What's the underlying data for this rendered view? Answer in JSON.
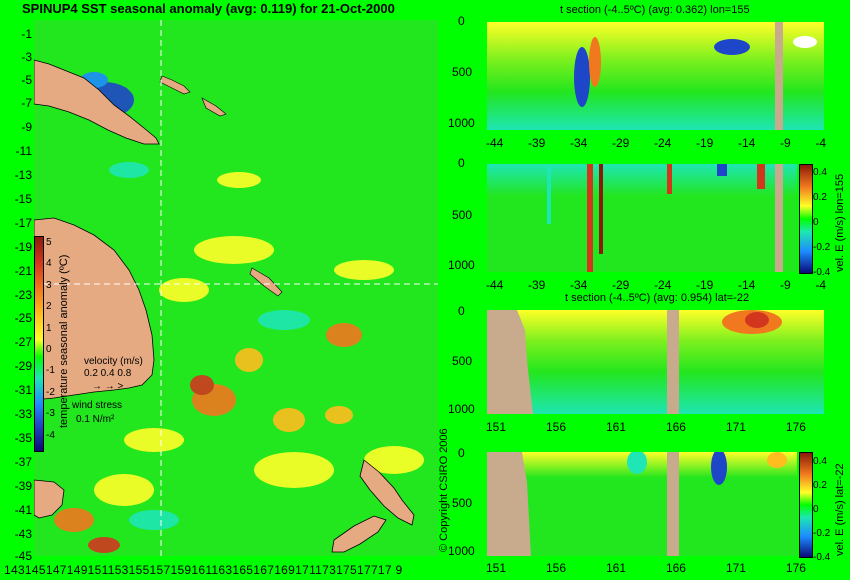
{
  "header": {
    "title": "SPINUP4 SST seasonal anomaly (avg: 0.119) for 21-Oct-2000"
  },
  "map": {
    "lat_labels": [
      "-1",
      "-3",
      "-5",
      "-7",
      "-9",
      "-11",
      "-13",
      "-15",
      "-17",
      "-19",
      "-21",
      "-23",
      "-25",
      "-27",
      "-29",
      "-31",
      "-33",
      "-35",
      "-37",
      "-39",
      "-41",
      "-43",
      "-45"
    ],
    "lon_labels_text": "14314514714915115315515715916116316516716917117317517717 9"
  },
  "colorbar": {
    "ticks": [
      "5",
      "4",
      "3",
      "2",
      "1",
      "0",
      "-1",
      "-2",
      "-3",
      "-4"
    ],
    "title": "temperature seasonal anomaly (ºC)",
    "colors": [
      "#8b1a0a",
      "#d2371e",
      "#f0781e",
      "#ffbe1e",
      "#ffff28",
      "#00ff00",
      "#1ee6b4",
      "#1e8cff",
      "#1e46c8",
      "#0a0a78"
    ]
  },
  "legend": {
    "velocity_label": "velocity (m/s)",
    "velocity_scale": "0.2 0.4 0.8",
    "wind_label": "wind stress",
    "wind_scale": "0.1 N/m²"
  },
  "copyright": "© Copyright CSIRO 2006",
  "panels": [
    {
      "title": "t section (-4..5ºC) (avg: 0.362) lon=155",
      "yticks": [
        "0",
        "500",
        "1000"
      ],
      "xticks": [
        "-44",
        "-39",
        "-34",
        "-29",
        "-24",
        "-19",
        "-14",
        "-9",
        "-4"
      ]
    },
    {
      "title": "",
      "yticks": [
        "0",
        "500",
        "1000"
      ],
      "xticks": [
        "-44",
        "-39",
        "-34",
        "-29",
        "-24",
        "-19",
        "-14",
        "-9",
        "-4"
      ],
      "colorbar_label": "vel. E (m/s) lon=155",
      "cbar_ticks": [
        "0.4",
        "0.2",
        "0",
        "-0.2",
        "-0.4"
      ]
    },
    {
      "title": "t section (-4..5ºC) (avg: 0.954) lat=-22",
      "yticks": [
        "0",
        "500",
        "1000"
      ],
      "xticks": [
        "151",
        "156",
        "161",
        "166",
        "171",
        "176"
      ]
    },
    {
      "title": "",
      "yticks": [
        "0",
        "500",
        "1000"
      ],
      "xticks": [
        "151",
        "156",
        "161",
        "166",
        "171",
        "176"
      ],
      "colorbar_label": "vel. E (m/s) lat=-22",
      "cbar_ticks": [
        "0.4",
        "0.2",
        "0",
        "-0.2",
        "-0.4"
      ]
    }
  ]
}
